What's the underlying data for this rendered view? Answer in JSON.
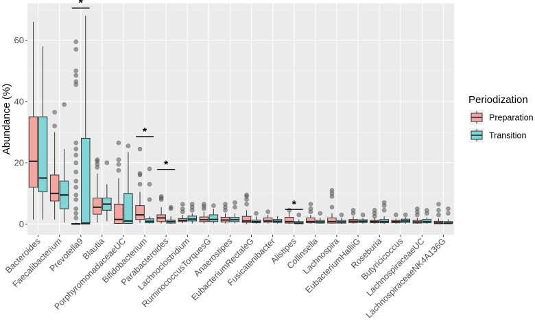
{
  "chart_data": {
    "type": "boxplot",
    "ylabel": "Abundance (%)",
    "xlabel": "",
    "ylim": [
      -3.5,
      72
    ],
    "yticks": [
      0,
      20,
      40,
      60
    ],
    "grid": true,
    "legend": {
      "title": "Periodization",
      "position": "right",
      "entries": [
        {
          "name": "Preparation",
          "color": "#F8766D",
          "fill": "#F4A6A0"
        },
        {
          "name": "Transition",
          "color": "#00BFC4",
          "fill": "#7ED6D8"
        }
      ]
    },
    "categories": [
      "Bacteroides",
      "Faecalibacterium",
      "Prevotella9",
      "Blautia",
      "PorphyromonadaceaeUC",
      "Bifidobacterium",
      "Parabacteroides",
      "Lachnoclostridium",
      "RuminococcusTorquesG",
      "Anaerostipes",
      "EubacteriumRectaleG",
      "Fusicatenibacter",
      "Alistipes",
      "Collinsella",
      "Lachnospira",
      "EubacteriumHalliiG",
      "Roseburia",
      "Butyricicoccus",
      "LachnospiraceaeUC",
      "LachnospiraceaeNK4A136G"
    ],
    "significance": [
      {
        "category": "Prevotella9",
        "label": "*",
        "y": 70.5
      },
      {
        "category": "Bifidobacterium",
        "label": "*",
        "y": 28.5
      },
      {
        "category": "Parabacteroides",
        "label": "*",
        "y": 17.8
      },
      {
        "category": "Alistipes",
        "label": "*",
        "y": 4.8
      }
    ],
    "series": [
      {
        "name": "Preparation",
        "boxes": [
          {
            "min": 1.5,
            "q1": 12,
            "median": 20.5,
            "q3": 35,
            "max": 66,
            "outliers": []
          },
          {
            "min": 1.5,
            "q1": 7.5,
            "median": 10,
            "q3": 16,
            "max": 30,
            "outliers": [
              32,
              36.5
            ]
          },
          {
            "min": 0,
            "q1": 0,
            "median": 0,
            "q3": 0.2,
            "max": 0.5,
            "outliers": [
              2,
              3.5,
              5,
              8,
              9.5,
              12,
              14,
              17,
              20,
              22.5,
              24.5,
              26.5,
              45.5,
              46.5,
              48.5,
              50,
              57,
              59.5
            ]
          },
          {
            "min": 0.5,
            "q1": 3.2,
            "median": 5.5,
            "q3": 8.5,
            "max": 16.5,
            "outliers": [
              18.5,
              19.5,
              20.5,
              21
            ]
          },
          {
            "min": 0,
            "q1": 0.2,
            "median": 1.5,
            "q3": 6.5,
            "max": 15,
            "outliers": [
              17.5,
              19.5,
              21,
              26.5
            ]
          },
          {
            "min": 0.3,
            "q1": 1.5,
            "median": 3,
            "q3": 6,
            "max": 10.5,
            "outliers": [
              13,
              16,
              16.5,
              24.5
            ]
          },
          {
            "min": 0.2,
            "q1": 0.8,
            "median": 2,
            "q3": 3,
            "max": 5.5,
            "outliers": [
              8,
              8.5,
              9
            ]
          },
          {
            "min": 0.3,
            "q1": 0.8,
            "median": 1.2,
            "q3": 1.8,
            "max": 3,
            "outliers": [
              4,
              5,
              6.5
            ]
          },
          {
            "min": 0.2,
            "q1": 0.8,
            "median": 1.4,
            "q3": 2.3,
            "max": 4,
            "outliers": [
              5,
              5.8,
              6.5
            ]
          },
          {
            "min": 0.2,
            "q1": 0.7,
            "median": 1.3,
            "q3": 2.2,
            "max": 3.5,
            "outliers": [
              4.5,
              5.5,
              6.5
            ]
          },
          {
            "min": 0,
            "q1": 0.5,
            "median": 1,
            "q3": 2.5,
            "max": 4.5,
            "outliers": [
              6.5,
              8,
              9,
              9.5
            ]
          },
          {
            "min": 0.2,
            "q1": 0.6,
            "median": 1,
            "q3": 2,
            "max": 3,
            "outliers": [
              4
            ]
          },
          {
            "min": 0,
            "q1": 0.3,
            "median": 0.8,
            "q3": 2.2,
            "max": 4,
            "outliers": [
              4.5
            ]
          },
          {
            "min": 0.1,
            "q1": 0.4,
            "median": 0.8,
            "q3": 2,
            "max": 3,
            "outliers": [
              4,
              5,
              6.5
            ]
          },
          {
            "min": 0.1,
            "q1": 0.3,
            "median": 0.8,
            "q3": 2,
            "max": 3.5,
            "outliers": [
              5.5,
              9,
              10,
              11
            ]
          },
          {
            "min": 0.1,
            "q1": 0.4,
            "median": 0.9,
            "q3": 1.5,
            "max": 2.5,
            "outliers": [
              3.5,
              4.5
            ]
          },
          {
            "min": 0.1,
            "q1": 0.4,
            "median": 0.8,
            "q3": 1.2,
            "max": 2,
            "outliers": [
              2.5,
              3.5,
              4.5
            ]
          },
          {
            "min": 0.1,
            "q1": 0.4,
            "median": 0.8,
            "q3": 1.2,
            "max": 1.8,
            "outliers": [
              3
            ]
          },
          {
            "min": 0.1,
            "q1": 0.3,
            "median": 0.7,
            "q3": 1.2,
            "max": 2,
            "outliers": [
              3,
              4,
              5
            ]
          },
          {
            "min": 0,
            "q1": 0.1,
            "median": 0.4,
            "q3": 0.9,
            "max": 1.8,
            "outliers": [
              3,
              4.5,
              6.5
            ]
          }
        ]
      },
      {
        "name": "Transition",
        "boxes": [
          {
            "min": 1.5,
            "q1": 10.5,
            "median": 15,
            "q3": 35,
            "max": 58,
            "outliers": []
          },
          {
            "min": 0.5,
            "q1": 5,
            "median": 9.5,
            "q3": 14,
            "max": 24.5,
            "outliers": [
              39
            ]
          },
          {
            "min": 0,
            "q1": 0,
            "median": 0.3,
            "q3": 28,
            "max": 68,
            "outliers": []
          },
          {
            "min": 1,
            "q1": 4.5,
            "median": 6.5,
            "q3": 8.5,
            "max": 13,
            "outliers": [
              20
            ]
          },
          {
            "min": 0,
            "q1": 0.2,
            "median": 1,
            "q3": 10,
            "max": 23.5,
            "outliers": [
              25.5
            ]
          },
          {
            "min": 0.1,
            "q1": 0.4,
            "median": 0.9,
            "q3": 1.7,
            "max": 2.5,
            "outliers": [
              8,
              13,
              18
            ]
          },
          {
            "min": 0.1,
            "q1": 0.3,
            "median": 0.8,
            "q3": 1.3,
            "max": 2.5,
            "outliers": [
              5,
              5.5
            ]
          },
          {
            "min": 0.2,
            "q1": 1,
            "median": 1.6,
            "q3": 2.6,
            "max": 3.5,
            "outliers": [
              4.5,
              5.5,
              6.5
            ]
          },
          {
            "min": 0.2,
            "q1": 0.8,
            "median": 1.5,
            "q3": 3,
            "max": 5,
            "outliers": [
              6
            ]
          },
          {
            "min": 0.2,
            "q1": 0.8,
            "median": 1.4,
            "q3": 2.2,
            "max": 3.5,
            "outliers": [
              5.5,
              7
            ]
          },
          {
            "min": 0.1,
            "q1": 0.4,
            "median": 0.8,
            "q3": 1.3,
            "max": 2.5,
            "outliers": [
              3.5
            ]
          },
          {
            "min": 0.1,
            "q1": 0.5,
            "median": 0.9,
            "q3": 1.5,
            "max": 2.5,
            "outliers": []
          },
          {
            "min": 0,
            "q1": 0.1,
            "median": 0.3,
            "q3": 0.8,
            "max": 1.5,
            "outliers": [
              3
            ]
          },
          {
            "min": 0.1,
            "q1": 0.3,
            "median": 0.7,
            "q3": 1.2,
            "max": 2,
            "outliers": [
              3.5
            ]
          },
          {
            "min": 0.1,
            "q1": 0.3,
            "median": 0.7,
            "q3": 1.2,
            "max": 2,
            "outliers": [
              3
            ]
          },
          {
            "min": 0.1,
            "q1": 0.5,
            "median": 0.9,
            "q3": 1.4,
            "max": 2,
            "outliers": [
              3
            ]
          },
          {
            "min": 0.1,
            "q1": 0.4,
            "median": 0.8,
            "q3": 1.5,
            "max": 2.5,
            "outliers": [
              4.5,
              6,
              7
            ]
          },
          {
            "min": 0.1,
            "q1": 0.5,
            "median": 1,
            "q3": 1.6,
            "max": 2.2,
            "outliers": [
              3
            ]
          },
          {
            "min": 0.1,
            "q1": 0.4,
            "median": 0.8,
            "q3": 1.5,
            "max": 2.2,
            "outliers": [
              3.5,
              4.5
            ]
          },
          {
            "min": 0,
            "q1": 0.1,
            "median": 0.3,
            "q3": 0.8,
            "max": 1.5,
            "outliers": [
              3.5,
              5
            ]
          }
        ]
      }
    ]
  }
}
